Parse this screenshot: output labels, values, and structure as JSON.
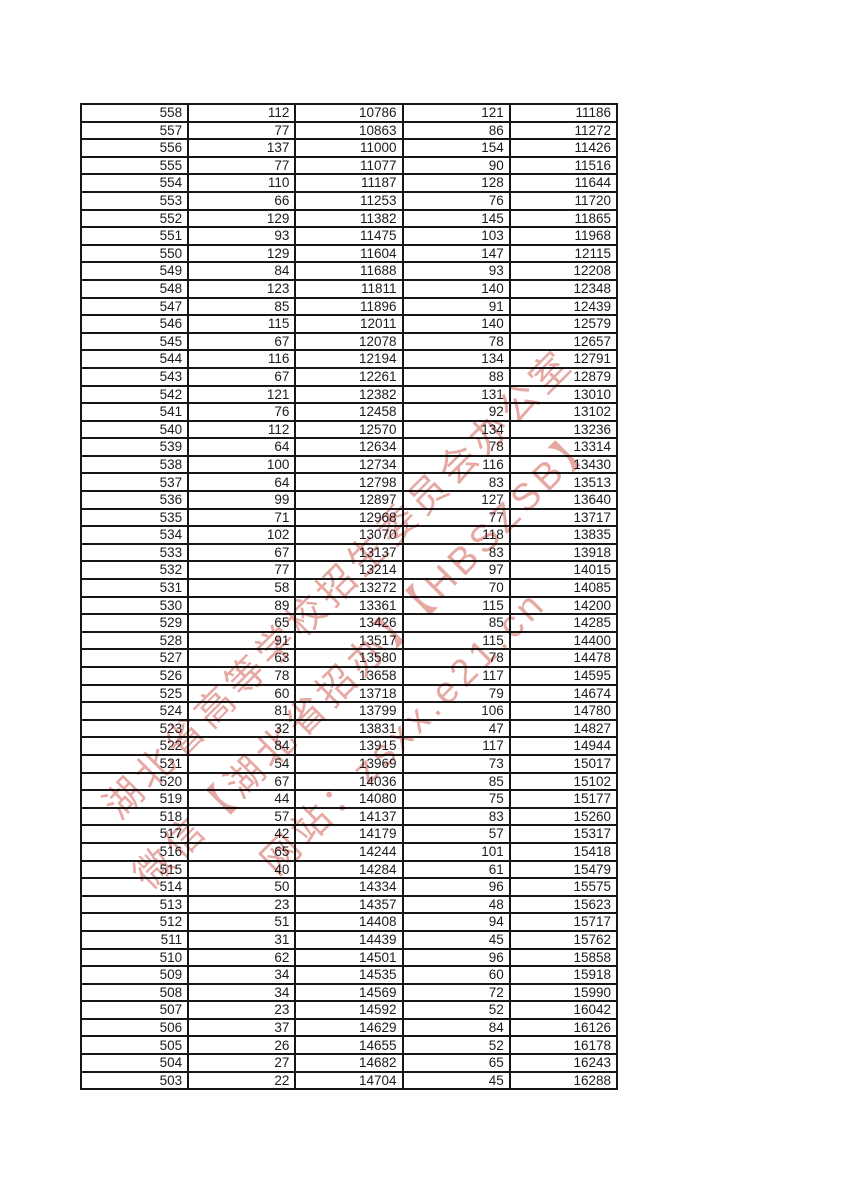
{
  "watermark": {
    "color": "#ca4a3e",
    "lines": [
      "湖北省高等学校招生委员会办公室",
      "微信【湖北省招办】【HBSZSB】",
      "网站：zsxx.e21.cn"
    ]
  },
  "table": {
    "rows": [
      [
        558,
        112,
        10786,
        121,
        11186
      ],
      [
        557,
        77,
        10863,
        86,
        11272
      ],
      [
        556,
        137,
        11000,
        154,
        11426
      ],
      [
        555,
        77,
        11077,
        90,
        11516
      ],
      [
        554,
        110,
        11187,
        128,
        11644
      ],
      [
        553,
        66,
        11253,
        76,
        11720
      ],
      [
        552,
        129,
        11382,
        145,
        11865
      ],
      [
        551,
        93,
        11475,
        103,
        11968
      ],
      [
        550,
        129,
        11604,
        147,
        12115
      ],
      [
        549,
        84,
        11688,
        93,
        12208
      ],
      [
        548,
        123,
        11811,
        140,
        12348
      ],
      [
        547,
        85,
        11896,
        91,
        12439
      ],
      [
        546,
        115,
        12011,
        140,
        12579
      ],
      [
        545,
        67,
        12078,
        78,
        12657
      ],
      [
        544,
        116,
        12194,
        134,
        12791
      ],
      [
        543,
        67,
        12261,
        88,
        12879
      ],
      [
        542,
        121,
        12382,
        131,
        13010
      ],
      [
        541,
        76,
        12458,
        92,
        13102
      ],
      [
        540,
        112,
        12570,
        134,
        13236
      ],
      [
        539,
        64,
        12634,
        78,
        13314
      ],
      [
        538,
        100,
        12734,
        116,
        13430
      ],
      [
        537,
        64,
        12798,
        83,
        13513
      ],
      [
        536,
        99,
        12897,
        127,
        13640
      ],
      [
        535,
        71,
        12968,
        77,
        13717
      ],
      [
        534,
        102,
        13070,
        118,
        13835
      ],
      [
        533,
        67,
        13137,
        83,
        13918
      ],
      [
        532,
        77,
        13214,
        97,
        14015
      ],
      [
        531,
        58,
        13272,
        70,
        14085
      ],
      [
        530,
        89,
        13361,
        115,
        14200
      ],
      [
        529,
        65,
        13426,
        85,
        14285
      ],
      [
        528,
        91,
        13517,
        115,
        14400
      ],
      [
        527,
        63,
        13580,
        78,
        14478
      ],
      [
        526,
        78,
        13658,
        117,
        14595
      ],
      [
        525,
        60,
        13718,
        79,
        14674
      ],
      [
        524,
        81,
        13799,
        106,
        14780
      ],
      [
        523,
        32,
        13831,
        47,
        14827
      ],
      [
        522,
        84,
        13915,
        117,
        14944
      ],
      [
        521,
        54,
        13969,
        73,
        15017
      ],
      [
        520,
        67,
        14036,
        85,
        15102
      ],
      [
        519,
        44,
        14080,
        75,
        15177
      ],
      [
        518,
        57,
        14137,
        83,
        15260
      ],
      [
        517,
        42,
        14179,
        57,
        15317
      ],
      [
        516,
        65,
        14244,
        101,
        15418
      ],
      [
        515,
        40,
        14284,
        61,
        15479
      ],
      [
        514,
        50,
        14334,
        96,
        15575
      ],
      [
        513,
        23,
        14357,
        48,
        15623
      ],
      [
        512,
        51,
        14408,
        94,
        15717
      ],
      [
        511,
        31,
        14439,
        45,
        15762
      ],
      [
        510,
        62,
        14501,
        96,
        15858
      ],
      [
        509,
        34,
        14535,
        60,
        15918
      ],
      [
        508,
        34,
        14569,
        72,
        15990
      ],
      [
        507,
        23,
        14592,
        52,
        16042
      ],
      [
        506,
        37,
        14629,
        84,
        16126
      ],
      [
        505,
        26,
        14655,
        52,
        16178
      ],
      [
        504,
        27,
        14682,
        65,
        16243
      ],
      [
        503,
        22,
        14704,
        45,
        16288
      ]
    ]
  }
}
